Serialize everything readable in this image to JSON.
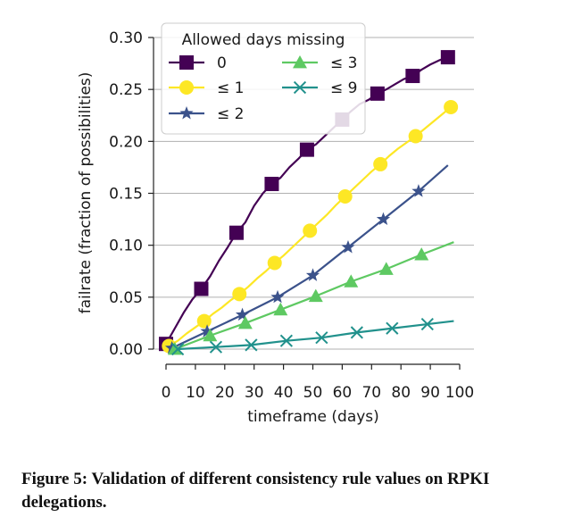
{
  "caption": "Figure 5: Validation of different consistency rule values on RPKI delegations.",
  "chart_data": {
    "type": "line",
    "xlabel": "timeframe (days)",
    "ylabel": "failrate (fraction of possibilities)",
    "xlim": [
      0,
      100
    ],
    "ylim": [
      0,
      0.3
    ],
    "x_ticks": [
      0,
      10,
      20,
      30,
      40,
      50,
      60,
      70,
      80,
      90,
      100
    ],
    "x_tick_labels": [
      "0",
      "10",
      "20",
      "30",
      "40",
      "50",
      "60",
      "70",
      "80",
      "90",
      "100"
    ],
    "y_ticks": [
      0,
      0.05,
      0.1,
      0.15,
      0.2,
      0.25,
      0.3
    ],
    "y_tick_labels": [
      "0.00",
      "0.05",
      "0.10",
      "0.15",
      "0.20",
      "0.25",
      "0.30"
    ],
    "grid": "horizontal",
    "legend": {
      "title": "Allowed days missing",
      "placement": "top-left",
      "columns": 2
    },
    "series": [
      {
        "name": "0",
        "color": "#440154",
        "marker": "square",
        "x": [
          0,
          3,
          6,
          9,
          12,
          15,
          18,
          21,
          24,
          27,
          30,
          33,
          36,
          39,
          42,
          45,
          48,
          51,
          54,
          57,
          60,
          63,
          66,
          69,
          72,
          75,
          78,
          81,
          84,
          87,
          90,
          93,
          96
        ],
        "y": [
          0.005,
          0.02,
          0.035,
          0.048,
          0.058,
          0.07,
          0.085,
          0.098,
          0.112,
          0.122,
          0.138,
          0.15,
          0.159,
          0.165,
          0.175,
          0.183,
          0.192,
          0.197,
          0.205,
          0.213,
          0.221,
          0.229,
          0.236,
          0.24,
          0.246,
          0.25,
          0.255,
          0.26,
          0.263,
          0.269,
          0.274,
          0.278,
          0.281
        ],
        "marker_x": [
          0,
          12,
          24,
          36,
          48,
          60,
          72,
          84,
          96
        ],
        "marker_y": [
          0.005,
          0.058,
          0.112,
          0.159,
          0.192,
          0.221,
          0.246,
          0.263,
          0.281
        ]
      },
      {
        "name": "≤ 1",
        "color": "#fde725",
        "marker": "circle",
        "x": [
          1,
          4,
          7,
          10,
          13,
          16,
          19,
          22,
          25,
          28,
          31,
          34,
          37,
          40,
          43,
          46,
          49,
          52,
          55,
          58,
          61,
          64,
          67,
          70,
          73,
          76,
          79,
          82,
          85,
          88,
          91,
          94,
          97
        ],
        "y": [
          0.003,
          0.008,
          0.015,
          0.021,
          0.027,
          0.034,
          0.04,
          0.047,
          0.053,
          0.06,
          0.068,
          0.075,
          0.083,
          0.09,
          0.098,
          0.106,
          0.114,
          0.122,
          0.13,
          0.139,
          0.147,
          0.155,
          0.163,
          0.171,
          0.178,
          0.186,
          0.193,
          0.199,
          0.205,
          0.212,
          0.219,
          0.226,
          0.233
        ],
        "marker_x": [
          1,
          13,
          25,
          37,
          49,
          61,
          73,
          85,
          97
        ],
        "marker_y": [
          0.003,
          0.027,
          0.053,
          0.083,
          0.114,
          0.147,
          0.178,
          0.205,
          0.233
        ]
      },
      {
        "name": "≤ 2",
        "color": "#3b528b",
        "marker": "star",
        "x": [
          2,
          14,
          26,
          38,
          50,
          62,
          74,
          86,
          96
        ],
        "y": [
          0.001,
          0.017,
          0.033,
          0.05,
          0.071,
          0.098,
          0.125,
          0.152,
          0.177
        ],
        "marker_x": [
          2,
          14,
          26,
          38,
          50,
          62,
          74,
          86
        ],
        "marker_y": [
          0.001,
          0.017,
          0.033,
          0.05,
          0.071,
          0.098,
          0.125,
          0.152
        ]
      },
      {
        "name": "≤ 3",
        "color": "#5ec962",
        "marker": "triangle",
        "x": [
          3,
          15,
          27,
          39,
          51,
          63,
          75,
          87,
          98
        ],
        "y": [
          0.0,
          0.013,
          0.025,
          0.038,
          0.051,
          0.065,
          0.077,
          0.091,
          0.103
        ],
        "marker_x": [
          3,
          15,
          27,
          39,
          51,
          63,
          75,
          87
        ],
        "marker_y": [
          0.0,
          0.013,
          0.025,
          0.038,
          0.051,
          0.065,
          0.077,
          0.091
        ]
      },
      {
        "name": "≤ 9",
        "color": "#21918c",
        "marker": "x",
        "x": [
          4,
          17,
          29,
          41,
          53,
          65,
          77,
          89,
          98
        ],
        "y": [
          0.0,
          0.002,
          0.004,
          0.008,
          0.011,
          0.016,
          0.02,
          0.024,
          0.027
        ],
        "marker_x": [
          4,
          17,
          29,
          41,
          53,
          65,
          77,
          89
        ],
        "marker_y": [
          0.0,
          0.002,
          0.004,
          0.008,
          0.011,
          0.016,
          0.02,
          0.024
        ]
      }
    ]
  }
}
